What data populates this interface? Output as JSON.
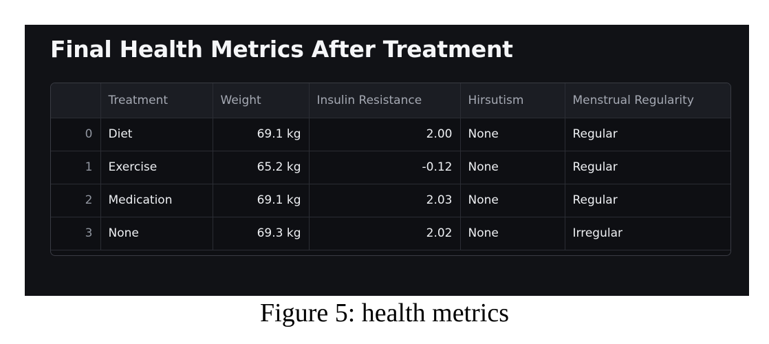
{
  "panel": {
    "title": "Final Health Metrics After Treatment"
  },
  "table": {
    "columns": [
      "",
      "Treatment",
      "Weight",
      "Insulin Resistance",
      "Hirsutism",
      "Menstrual Regularity"
    ],
    "rows": [
      {
        "index": "0",
        "treatment": "Diet",
        "weight": "69.1 kg",
        "insulin_resistance": "2.00",
        "hirsutism": "None",
        "menstrual_regularity": "Regular"
      },
      {
        "index": "1",
        "treatment": "Exercise",
        "weight": "65.2 kg",
        "insulin_resistance": "-0.12",
        "hirsutism": "None",
        "menstrual_regularity": "Regular"
      },
      {
        "index": "2",
        "treatment": "Medication",
        "weight": "69.1 kg",
        "insulin_resistance": "2.03",
        "hirsutism": "None",
        "menstrual_regularity": "Regular"
      },
      {
        "index": "3",
        "treatment": "None",
        "weight": "69.3 kg",
        "insulin_resistance": "2.02",
        "hirsutism": "None",
        "menstrual_regularity": "Irregular"
      }
    ]
  },
  "caption": "Figure 5: health metrics",
  "colors": {
    "panel_background": "#111216",
    "header_background": "#1b1d23",
    "text": "#eef0f3",
    "muted_text": "#a5a9b3",
    "grid_line": "#2b2d34"
  }
}
